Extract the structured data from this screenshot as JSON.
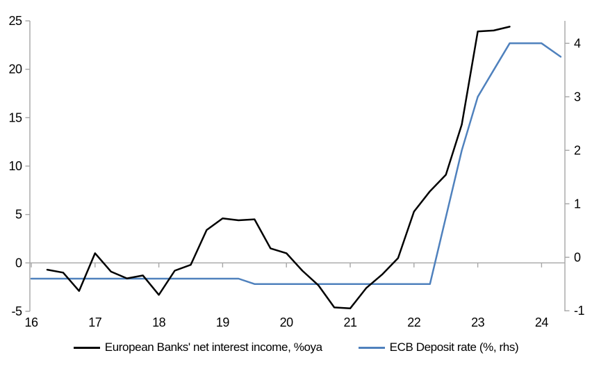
{
  "chart_data": {
    "type": "line",
    "title": "",
    "x_axis": {
      "ticks": [
        16,
        17,
        18,
        19,
        20,
        21,
        22,
        23,
        24
      ],
      "min": 16,
      "max": 24.37
    },
    "left_axis": {
      "ticks": [
        25,
        20,
        15,
        10,
        5,
        0,
        -5
      ],
      "min": -5,
      "max": 25
    },
    "right_axis": {
      "ticks": [
        4,
        3,
        2,
        1,
        0,
        -1
      ],
      "min": -1.01,
      "max": 4.42
    },
    "grid": "zero-line-only",
    "legend_position": "bottom",
    "series": [
      {
        "name": "European Banks' net interest income, %oya",
        "axis": "left",
        "color": "#000000",
        "points": [
          [
            16.25,
            -0.7
          ],
          [
            16.5,
            -1.0
          ],
          [
            16.75,
            -2.9
          ],
          [
            17,
            1.0
          ],
          [
            17.25,
            -0.9
          ],
          [
            17.5,
            -1.6
          ],
          [
            17.75,
            -1.3
          ],
          [
            18,
            -3.3
          ],
          [
            18.25,
            -0.8
          ],
          [
            18.5,
            -0.2
          ],
          [
            18.75,
            3.4
          ],
          [
            19,
            4.6
          ],
          [
            19.25,
            4.4
          ],
          [
            19.5,
            4.5
          ],
          [
            19.75,
            1.5
          ],
          [
            20,
            1.0
          ],
          [
            20.25,
            -0.8
          ],
          [
            20.5,
            -2.3
          ],
          [
            20.75,
            -4.6
          ],
          [
            21,
            -4.7
          ],
          [
            21.25,
            -2.6
          ],
          [
            21.5,
            -1.2
          ],
          [
            21.75,
            0.5
          ],
          [
            22,
            5.3
          ],
          [
            22.25,
            7.4
          ],
          [
            22.5,
            9.1
          ],
          [
            22.75,
            14.3
          ],
          [
            23,
            23.9
          ],
          [
            23.25,
            24.0
          ],
          [
            23.5,
            24.4
          ]
        ]
      },
      {
        "name": "ECB Deposit rate (%, rhs)",
        "axis": "right",
        "color": "#4f81bd",
        "points": [
          [
            16,
            -0.4
          ],
          [
            16.25,
            -0.4
          ],
          [
            16.5,
            -0.4
          ],
          [
            16.75,
            -0.4
          ],
          [
            17,
            -0.4
          ],
          [
            17.25,
            -0.4
          ],
          [
            17.5,
            -0.4
          ],
          [
            17.75,
            -0.4
          ],
          [
            18,
            -0.4
          ],
          [
            18.25,
            -0.4
          ],
          [
            18.5,
            -0.4
          ],
          [
            18.75,
            -0.4
          ],
          [
            19,
            -0.4
          ],
          [
            19.25,
            -0.4
          ],
          [
            19.5,
            -0.5
          ],
          [
            19.75,
            -0.5
          ],
          [
            20,
            -0.5
          ],
          [
            20.25,
            -0.5
          ],
          [
            20.5,
            -0.5
          ],
          [
            20.75,
            -0.5
          ],
          [
            21,
            -0.5
          ],
          [
            21.25,
            -0.5
          ],
          [
            21.5,
            -0.5
          ],
          [
            21.75,
            -0.5
          ],
          [
            22,
            -0.5
          ],
          [
            22.25,
            -0.5
          ],
          [
            22.5,
            0.75
          ],
          [
            22.75,
            2.0
          ],
          [
            23,
            3.0
          ],
          [
            23.25,
            3.5
          ],
          [
            23.5,
            4.0
          ],
          [
            23.75,
            4.0
          ],
          [
            24,
            4.0
          ],
          [
            24.3,
            3.75
          ]
        ]
      }
    ]
  },
  "colors": {
    "axis": "#a6a6a6",
    "zero_line": "#a6a6a6",
    "tick_text": "#000000",
    "background": "#ffffff"
  }
}
